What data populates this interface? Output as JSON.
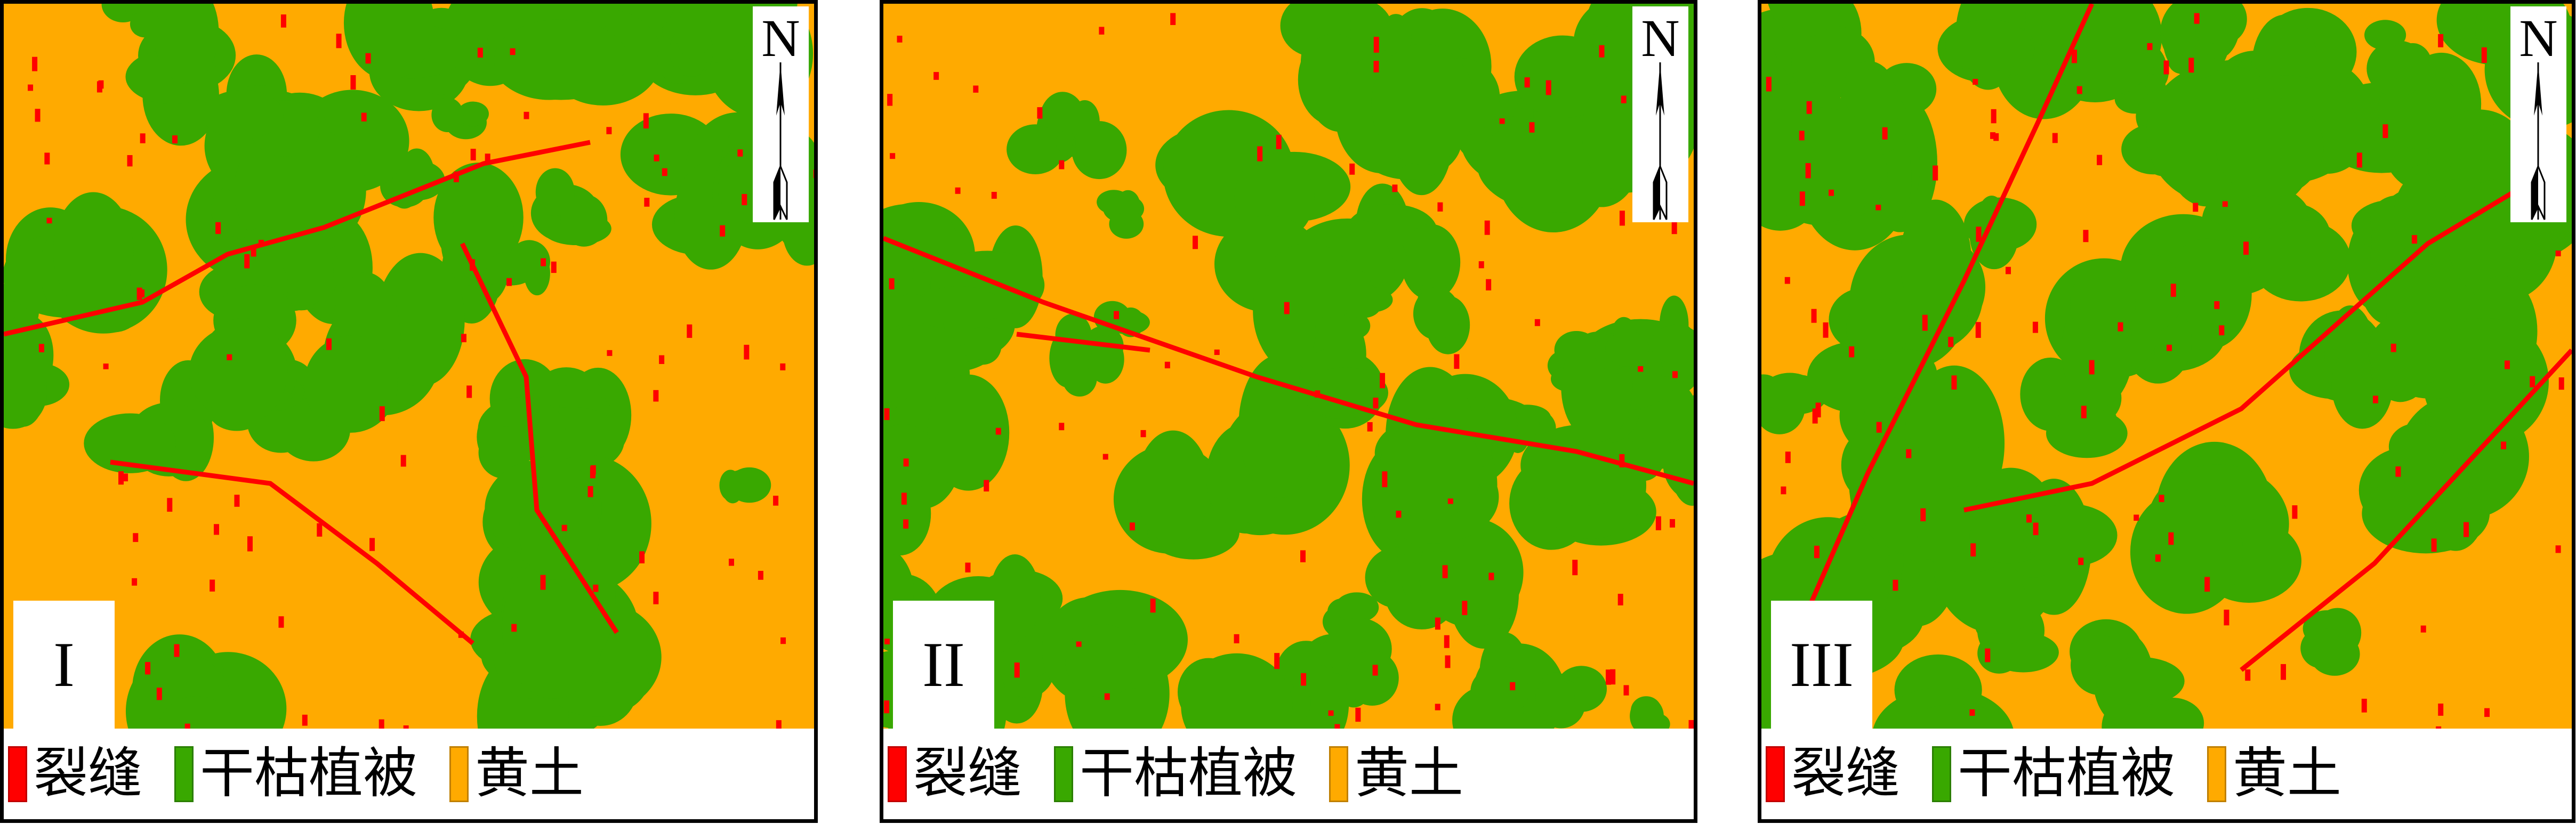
{
  "colors": {
    "crack": "#ff0000",
    "vegetation": "#39a800",
    "loess": "#ffaa00"
  },
  "north_label": "N",
  "legend": [
    {
      "key": "crack",
      "label": "裂缝"
    },
    {
      "key": "vegetation",
      "label": "干枯植被"
    },
    {
      "key": "loess",
      "label": "黄土"
    }
  ],
  "panels": [
    {
      "label": "I"
    },
    {
      "label": "II"
    },
    {
      "label": "III"
    }
  ]
}
